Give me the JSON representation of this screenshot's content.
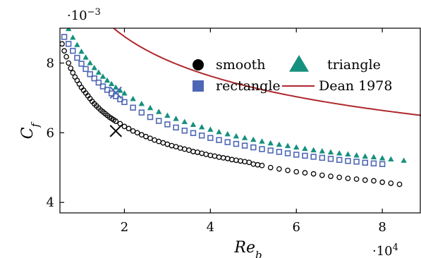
{
  "chart_data": {
    "type": "scatter",
    "title": "",
    "xlabel": "Re_b",
    "ylabel": "C_f",
    "x_multiplier": "·10^4",
    "y_multiplier": "·10^−3",
    "xlim": [
      0.5,
      8.9
    ],
    "ylim": [
      3.7,
      9.0
    ],
    "x_ticks": [
      2,
      4,
      6,
      8
    ],
    "y_ticks": [
      4,
      6,
      8
    ],
    "x_tick_labels": [
      "2",
      "4",
      "6",
      "8"
    ],
    "y_tick_labels": [
      "4",
      "6",
      "8"
    ],
    "grid": false,
    "legend_position": "top-right",
    "legend_layout": "two-columns",
    "series": [
      {
        "name": "smooth",
        "marker": "circle-open",
        "legend_marker": "circle-filled",
        "color": "#000000",
        "x": [
          0.55,
          0.6,
          0.65,
          0.7,
          0.75,
          0.8,
          0.85,
          0.9,
          0.95,
          1.0,
          1.05,
          1.1,
          1.15,
          1.2,
          1.25,
          1.3,
          1.35,
          1.4,
          1.45,
          1.5,
          1.55,
          1.6,
          1.65,
          1.7,
          1.75,
          1.8,
          1.9,
          2.0,
          2.1,
          2.2,
          2.3,
          2.4,
          2.5,
          2.6,
          2.7,
          2.8,
          2.9,
          3.0,
          3.1,
          3.2,
          3.3,
          3.4,
          3.5,
          3.6,
          3.7,
          3.8,
          3.9,
          4.0,
          4.1,
          4.2,
          4.3,
          4.4,
          4.5,
          4.6,
          4.7,
          4.8,
          4.9,
          5.0,
          5.1,
          5.2,
          5.4,
          5.6,
          5.8,
          6.0,
          6.2,
          6.4,
          6.6,
          6.8,
          7.0,
          7.2,
          7.4,
          7.6,
          7.8,
          8.0,
          8.2,
          8.4
        ],
        "y": [
          8.55,
          8.35,
          8.18,
          8.0,
          7.85,
          7.72,
          7.6,
          7.5,
          7.4,
          7.3,
          7.22,
          7.14,
          7.06,
          6.98,
          6.9,
          6.83,
          6.77,
          6.71,
          6.65,
          6.6,
          6.55,
          6.5,
          6.45,
          6.41,
          6.37,
          6.33,
          6.26,
          6.18,
          6.12,
          6.05,
          6.0,
          5.94,
          5.89,
          5.84,
          5.79,
          5.75,
          5.71,
          5.67,
          5.63,
          5.6,
          5.56,
          5.53,
          5.5,
          5.46,
          5.44,
          5.41,
          5.38,
          5.35,
          5.33,
          5.3,
          5.28,
          5.26,
          5.23,
          5.21,
          5.19,
          5.17,
          5.15,
          5.1,
          5.08,
          5.06,
          5.0,
          4.96,
          4.92,
          4.88,
          4.85,
          4.82,
          4.78,
          4.75,
          4.72,
          4.69,
          4.67,
          4.64,
          4.62,
          4.58,
          4.55,
          4.52
        ]
      },
      {
        "name": "rectangle",
        "marker": "square-open",
        "legend_marker": "square-filled",
        "color": "#4e67b4",
        "x": [
          0.6,
          0.7,
          0.8,
          0.9,
          1.0,
          1.1,
          1.2,
          1.3,
          1.4,
          1.5,
          1.6,
          1.7,
          1.8,
          1.9,
          2.0,
          2.2,
          2.4,
          2.6,
          2.8,
          3.0,
          3.2,
          3.4,
          3.6,
          3.8,
          4.0,
          4.2,
          4.4,
          4.6,
          4.8,
          5.0,
          5.2,
          5.4,
          5.6,
          5.8,
          6.0,
          6.2,
          6.4,
          6.6,
          6.8,
          7.0,
          7.2,
          7.4,
          7.6,
          7.8,
          8.0
        ],
        "y": [
          8.75,
          8.55,
          8.35,
          8.15,
          7.98,
          7.83,
          7.68,
          7.56,
          7.44,
          7.33,
          7.23,
          7.13,
          7.05,
          6.96,
          6.88,
          6.72,
          6.58,
          6.45,
          6.34,
          6.24,
          6.15,
          6.06,
          5.99,
          5.92,
          5.85,
          5.79,
          5.73,
          5.68,
          5.63,
          5.58,
          5.53,
          5.49,
          5.45,
          5.41,
          5.37,
          5.34,
          5.31,
          5.28,
          5.25,
          5.22,
          5.19,
          5.17,
          5.14,
          5.12,
          5.1
        ]
      },
      {
        "name": "triangle",
        "marker": "triangle-filled",
        "legend_marker": "triangle-filled",
        "color": "#16907f",
        "x": [
          0.7,
          0.8,
          0.9,
          1.0,
          1.1,
          1.2,
          1.3,
          1.4,
          1.5,
          1.6,
          1.7,
          1.8,
          1.9,
          2.0,
          2.2,
          2.4,
          2.6,
          2.8,
          3.0,
          3.2,
          3.4,
          3.6,
          3.8,
          4.0,
          4.2,
          4.4,
          4.6,
          4.8,
          5.0,
          5.2,
          5.4,
          5.6,
          5.8,
          6.0,
          6.2,
          6.4,
          6.6,
          6.8,
          7.0,
          7.2,
          7.4,
          7.6,
          7.8,
          8.0,
          8.2,
          8.5
        ],
        "y": [
          8.98,
          8.73,
          8.52,
          8.33,
          8.16,
          8.0,
          7.86,
          7.73,
          7.61,
          7.5,
          7.4,
          7.3,
          7.21,
          7.13,
          6.97,
          6.83,
          6.71,
          6.6,
          6.49,
          6.4,
          6.31,
          6.23,
          6.16,
          6.09,
          6.02,
          5.96,
          5.9,
          5.85,
          5.8,
          5.75,
          5.7,
          5.66,
          5.62,
          5.58,
          5.54,
          5.5,
          5.47,
          5.44,
          5.41,
          5.38,
          5.35,
          5.32,
          5.3,
          5.27,
          5.24,
          5.2
        ]
      },
      {
        "name": "Dean 1978",
        "marker": "line",
        "color": "#b0282d",
        "formula": "0.0635 * Re^(-0.2)",
        "x_range": [
          0.55,
          8.9
        ]
      }
    ],
    "annotations": [
      {
        "marker": "cross",
        "color": "#000000",
        "x": 1.8,
        "y": 6.05
      },
      {
        "marker": "cross",
        "color": "#4e67b4",
        "x": 1.8,
        "y": 7.15
      }
    ]
  }
}
